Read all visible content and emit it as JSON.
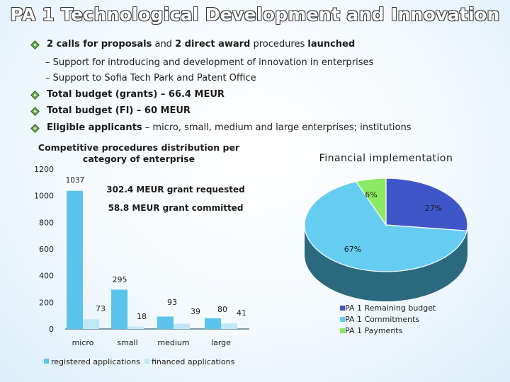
{
  "title": "PA 1 Technological Development and Innovation",
  "bullets": [
    {
      "p1": "2 calls for proposals",
      "p2": " and ",
      "p3": "2 direct award",
      "p4": " procedures ",
      "p5": "launched"
    },
    {
      "text": "Total budget (grants) – 66.4 MEUR"
    },
    {
      "text": "Total budget (FI) – 60 MEUR"
    },
    {
      "bold": "Eligible applicants",
      "rest": " – micro, small, medium and large enterprises; institutions"
    }
  ],
  "subbullets": [
    "– Support for introducing and development of innovation in enterprises",
    "– Support to Sofia Tech Park and Patent Office"
  ],
  "annotations": {
    "requested": "302.4 MEUR grant requested",
    "committed": "58.8 MEUR grant committed"
  },
  "chart_data": [
    {
      "type": "bar",
      "title": "Competitive procedures distribution per category of enterprise",
      "title_lines": [
        "Competitive procedures distribution per",
        "category of enterprise"
      ],
      "categories": [
        "micro",
        "small",
        "medium",
        "large"
      ],
      "series": [
        {
          "name": "registered applications",
          "values": [
            1037,
            295,
            93,
            80
          ],
          "labels": [
            "1037",
            "295",
            "93",
            "80"
          ],
          "color": "#5bc4ec"
        },
        {
          "name": "financed applications",
          "values": [
            73,
            18,
            39,
            41
          ],
          "labels": [
            "73",
            "18",
            "39",
            "41"
          ],
          "color": "#bfe7f7"
        }
      ],
      "ylim": [
        0,
        1200
      ],
      "yticks": [
        0,
        200,
        400,
        600,
        800,
        1000,
        1200
      ],
      "ytick_labels": [
        "0",
        "200",
        "400",
        "600",
        "800",
        "1000",
        "1200"
      ],
      "xlabel": "",
      "ylabel": "",
      "legend": "bottom"
    },
    {
      "type": "pie",
      "title": "Financial implementation",
      "slices": [
        {
          "name": "PA 1 Remaining budget",
          "value": 27,
          "label": "27%",
          "color": "#3f56c9"
        },
        {
          "name": "PA 1 Commitments",
          "value": 67,
          "label": "67%",
          "color": "#65cdf2"
        },
        {
          "name": "PA 1 Payments",
          "value": 6,
          "label": "6%",
          "color": "#8bea62"
        }
      ],
      "legend": "bottom-right"
    }
  ],
  "colors": {
    "bullet": "#6aa84f",
    "pie_side": "#2b6a7e"
  }
}
